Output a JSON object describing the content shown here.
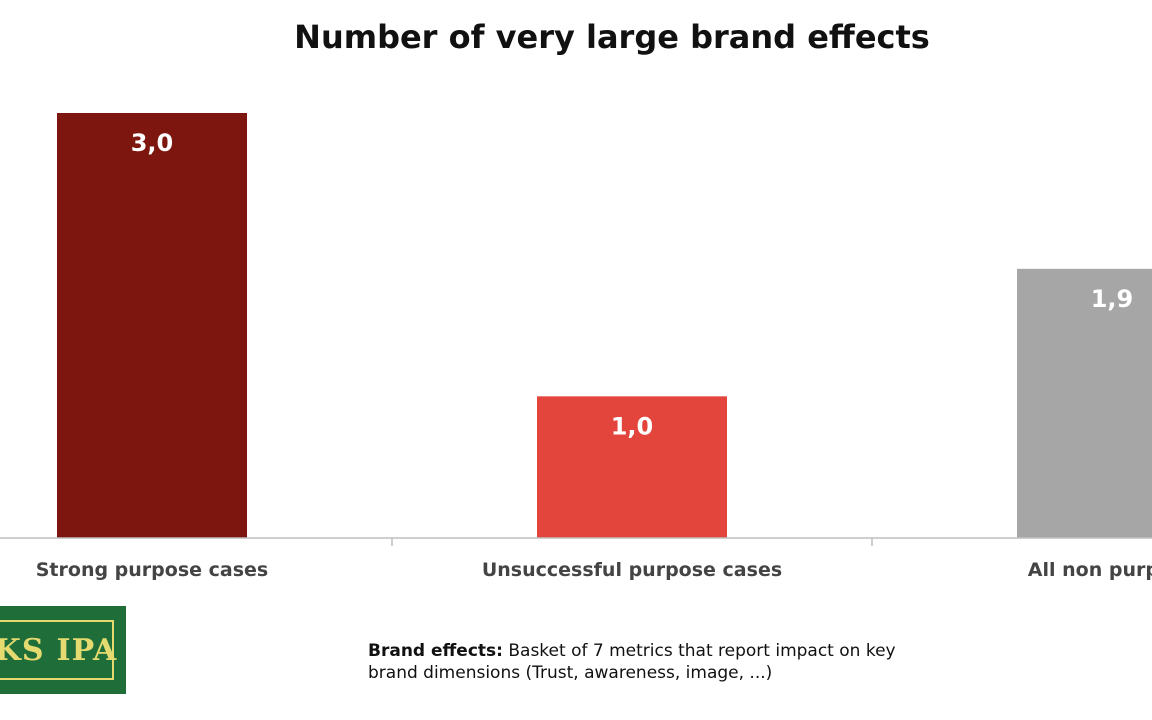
{
  "chart_data": {
    "type": "bar",
    "title": "Number of very large brand effects",
    "categories": [
      "Strong purpose cases",
      "Unsuccessful purpose cases",
      "All non purpose"
    ],
    "values": [
      3.0,
      1.0,
      1.9
    ],
    "value_labels": [
      "3,0",
      "1,0",
      "1,9"
    ],
    "colors": [
      "#7d160f",
      "#e3443b",
      "#a6a6a6"
    ],
    "ylim": [
      0,
      3.0
    ],
    "grid": false,
    "legend": "none"
  },
  "logo": {
    "left_text": "KS",
    "right_text": "IPA"
  },
  "footnote": {
    "bold": "Brand effects:",
    "text": " Basket of 7 metrics that report impact on key brand dimensions (Trust, awareness, image, ...)"
  }
}
